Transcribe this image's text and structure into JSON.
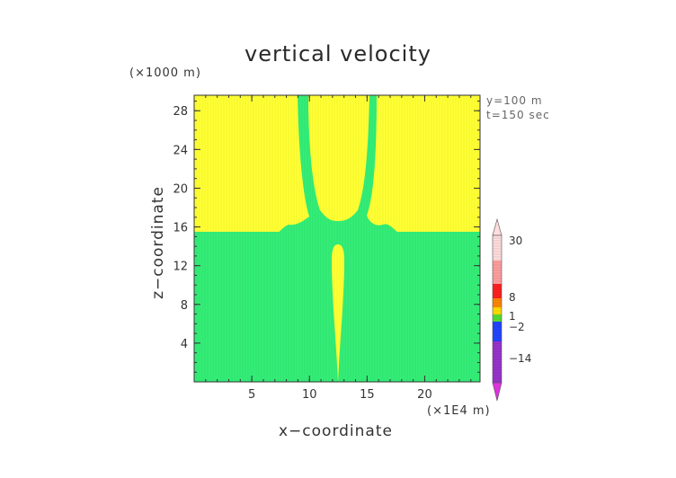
{
  "chart_data": {
    "type": "heatmap",
    "title": "vertical velocity",
    "xlabel": "x−coordinate",
    "ylabel": "z−coordinate",
    "x_unit": "(×1E4 m)",
    "y_unit": "(×1000 m)",
    "annotations": [
      "y=100  m",
      "t=150 sec"
    ],
    "xlim": [
      0,
      24.8
    ],
    "ylim": [
      0,
      29.6
    ],
    "x_ticks": [
      5,
      10,
      15,
      20
    ],
    "y_ticks": [
      4,
      8,
      12,
      16,
      20,
      24,
      28
    ],
    "fields": {
      "background_upper": {
        "z_range": [
          15.5,
          29.6
        ],
        "color": "#ffff33"
      },
      "background_lower": {
        "z_range": [
          0,
          15.5
        ],
        "color": "#33ee77"
      },
      "tongue_left": {
        "color": "#33ee77"
      },
      "tongue_right": {
        "color": "#33ee77"
      },
      "central_plume": {
        "color": "#ffff33"
      }
    },
    "colorbar": {
      "labels": [
        "30",
        "8",
        "1",
        "−2",
        "−14"
      ],
      "colors": [
        "#ffdddd",
        "#ff9f9f",
        "#ff2020",
        "#ff8800",
        "#ffdd00",
        "#55dd33",
        "#2244ff",
        "#9933cc",
        "#dd33dd"
      ]
    }
  }
}
